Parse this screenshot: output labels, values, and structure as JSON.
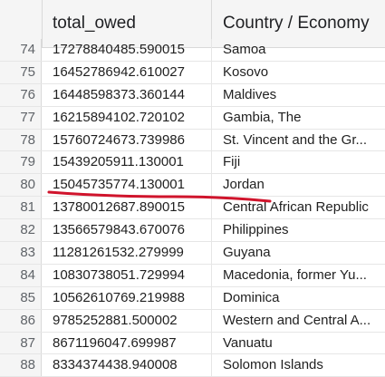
{
  "columns": {
    "index": "",
    "col1": "total_owed",
    "col2": "Country / Economy"
  },
  "rows": [
    {
      "index": "74",
      "total_owed": "17278840485.590015",
      "country": "Samoa"
    },
    {
      "index": "75",
      "total_owed": "16452786942.610027",
      "country": "Kosovo"
    },
    {
      "index": "76",
      "total_owed": "16448598373.360144",
      "country": "Maldives"
    },
    {
      "index": "77",
      "total_owed": "16215894102.720102",
      "country": "Gambia, The"
    },
    {
      "index": "78",
      "total_owed": "15760724673.739986",
      "country": "St. Vincent and the Gr..."
    },
    {
      "index": "79",
      "total_owed": "15439205911.130001",
      "country": "Fiji"
    },
    {
      "index": "80",
      "total_owed": "15045735774.130001",
      "country": "Jordan"
    },
    {
      "index": "81",
      "total_owed": "13780012687.890015",
      "country": "Central African Republic"
    },
    {
      "index": "82",
      "total_owed": "13566579843.670076",
      "country": "Philippines"
    },
    {
      "index": "83",
      "total_owed": "11281261532.279999",
      "country": "Guyana"
    },
    {
      "index": "84",
      "total_owed": "10830738051.729994",
      "country": "Macedonia, former Yu..."
    },
    {
      "index": "85",
      "total_owed": "10562610769.219988",
      "country": "Dominica"
    },
    {
      "index": "86",
      "total_owed": "9785252881.500002",
      "country": "Western and Central A..."
    },
    {
      "index": "87",
      "total_owed": "8671196047.699987",
      "country": "Vanuatu"
    },
    {
      "index": "88",
      "total_owed": "8334374438.940008",
      "country": "Solomon Islands"
    }
  ],
  "colors": {
    "annotation": "#d0142c",
    "header_bg": "#f5f5f5",
    "grid_line": "#e6e6e6"
  }
}
